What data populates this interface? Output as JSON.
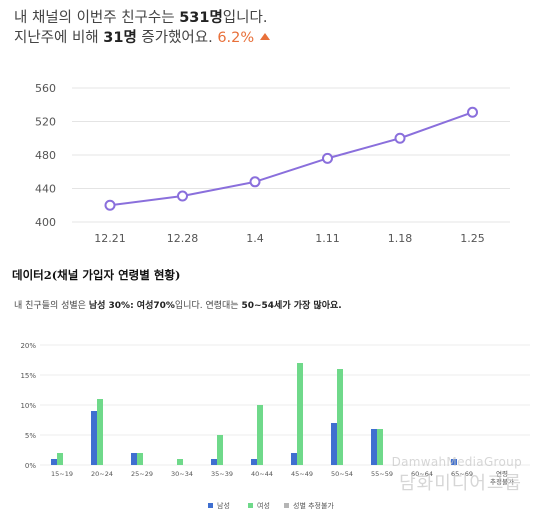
{
  "header": {
    "line1_prefix": "내 채널의 이번주 친구수는 ",
    "line1_value": "531명",
    "line1_suffix": "입니다.",
    "line2_prefix": "지난주에 비해 ",
    "line2_value": "31명",
    "line2_middle": " 증가했어요. ",
    "line2_pct": "6.2%"
  },
  "section_title": "데이터2(채널 가입자 연령별 현황)",
  "summary": {
    "prefix": "내 친구들의 성별은 ",
    "gender_bold": "남성 30%: 여성70%",
    "middle": "입니다. 연령대는 ",
    "age_bold": "50~54세가 가장 많아요."
  },
  "watermark": {
    "line1": "DamwahMediaGroup",
    "line2": "담화미디어그룹"
  },
  "chart_data": [
    {
      "type": "line",
      "x": [
        "12.21",
        "12.28",
        "1.4",
        "1.11",
        "1.18",
        "1.25"
      ],
      "series": [
        {
          "values": [
            420,
            431,
            448,
            476,
            500,
            531
          ]
        }
      ],
      "yticks": [
        400,
        440,
        480,
        520,
        560
      ],
      "ylim": [
        400,
        560
      ],
      "grid": true,
      "color": "#8a6fdc"
    },
    {
      "type": "bar",
      "categories": [
        "15~19",
        "20~24",
        "25~29",
        "30~34",
        "35~39",
        "40~44",
        "45~49",
        "50~54",
        "55~59",
        "60~64",
        "65~69",
        "연령\n추정불가"
      ],
      "series": [
        {
          "name": "남성",
          "color": "#3f6fd0",
          "values": [
            1,
            9,
            2,
            0,
            1,
            1,
            2,
            7,
            6,
            0,
            1,
            0
          ]
        },
        {
          "name": "여성",
          "color": "#6fd98a",
          "values": [
            2,
            11,
            2,
            1,
            5,
            10,
            17,
            16,
            6,
            0,
            0,
            0
          ]
        },
        {
          "name": "성별 추정불가",
          "color": "#b5b5b5",
          "values": [
            0,
            0,
            0,
            0,
            0,
            0,
            0,
            0,
            0,
            0,
            0,
            0
          ]
        }
      ],
      "yticks": [
        "0%",
        "5%",
        "10%",
        "15%",
        "20%"
      ],
      "ylim": [
        0,
        20
      ],
      "legend": "bottom"
    }
  ]
}
